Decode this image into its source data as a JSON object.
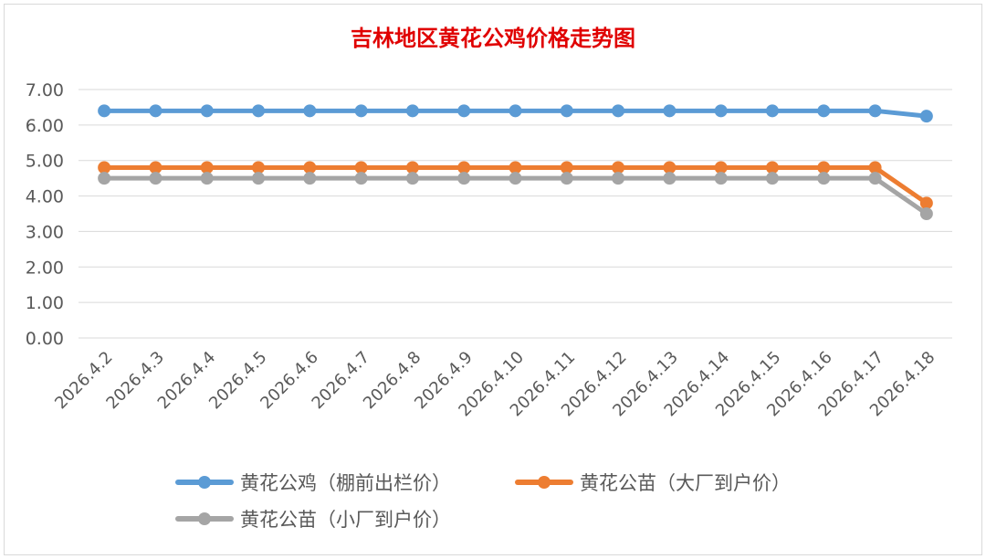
{
  "chart_data": {
    "type": "line",
    "title": "吉林地区黄花公鸡价格走势图",
    "categories": [
      "2026.4.2",
      "2026.4.3",
      "2026.4.4",
      "2026.4.5",
      "2026.4.6",
      "2026.4.7",
      "2026.4.8",
      "2026.4.9",
      "2026.4.10",
      "2026.4.11",
      "2026.4.12",
      "2026.4.13",
      "2026.4.14",
      "2026.4.15",
      "2026.4.16",
      "2026.4.17",
      "2026.4.18"
    ],
    "ylim": [
      0,
      7
    ],
    "yticks": [
      "0.00",
      "1.00",
      "2.00",
      "3.00",
      "4.00",
      "5.00",
      "6.00",
      "7.00"
    ],
    "grid": true,
    "legend_position": "bottom",
    "series": [
      {
        "name": "黄花公鸡（棚前出栏价）",
        "color": "#5b9bd5",
        "values": [
          6.4,
          6.4,
          6.4,
          6.4,
          6.4,
          6.4,
          6.4,
          6.4,
          6.4,
          6.4,
          6.4,
          6.4,
          6.4,
          6.4,
          6.4,
          6.4,
          6.25
        ]
      },
      {
        "name": "黄花公苗（大厂到户价）",
        "color": "#ed7d31",
        "values": [
          4.8,
          4.8,
          4.8,
          4.8,
          4.8,
          4.8,
          4.8,
          4.8,
          4.8,
          4.8,
          4.8,
          4.8,
          4.8,
          4.8,
          4.8,
          4.8,
          3.8
        ]
      },
      {
        "name": "黄花公苗（小厂到户价）",
        "color": "#a5a5a5",
        "values": [
          4.5,
          4.5,
          4.5,
          4.5,
          4.5,
          4.5,
          4.5,
          4.5,
          4.5,
          4.5,
          4.5,
          4.5,
          4.5,
          4.5,
          4.5,
          4.5,
          3.5
        ]
      }
    ]
  },
  "colors": {
    "title": "#e00000",
    "axis_text": "#595959",
    "gridline": "#d9d9d9",
    "frame": "#d9d9d9"
  }
}
